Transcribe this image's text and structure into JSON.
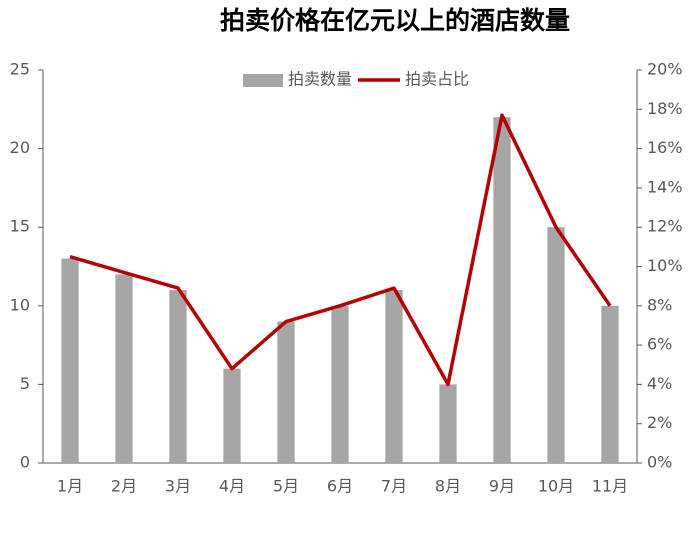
{
  "chart_data": {
    "type": "bar",
    "title": "拍卖价格在亿元以上的酒店数量",
    "categories": [
      "1月",
      "2月",
      "3月",
      "4月",
      "5月",
      "6月",
      "7月",
      "8月",
      "9月",
      "10月",
      "11月"
    ],
    "series": [
      {
        "name": "拍卖数量",
        "type": "bar",
        "color": "#a6a6a6",
        "values": [
          13,
          12,
          11,
          6,
          9,
          10,
          11,
          5,
          22,
          15,
          10
        ]
      },
      {
        "name": "拍卖占比",
        "type": "line",
        "axis": "y2",
        "color": "#b40000",
        "values": [
          10.5,
          9.7,
          8.9,
          4.8,
          7.2,
          8.0,
          8.9,
          4.0,
          17.7,
          12.0,
          8.0
        ]
      }
    ],
    "ylim": [
      0,
      25
    ],
    "yticks": [
      0,
      5,
      10,
      15,
      20,
      25
    ],
    "y2lim": [
      0,
      20
    ],
    "y2ticks": [
      {
        "value": 0,
        "label": "0%"
      },
      {
        "value": 2,
        "label": "2%"
      },
      {
        "value": 4,
        "label": "4%"
      },
      {
        "value": 6,
        "label": "6%"
      },
      {
        "value": 8,
        "label": "8%"
      },
      {
        "value": 10,
        "label": "10%"
      },
      {
        "value": 12,
        "label": "12%"
      },
      {
        "value": 14,
        "label": "14%"
      },
      {
        "value": 16,
        "label": "16%"
      },
      {
        "value": 18,
        "label": "18%"
      },
      {
        "value": 20,
        "label": "20%"
      }
    ],
    "grid": false,
    "legend": "top"
  }
}
